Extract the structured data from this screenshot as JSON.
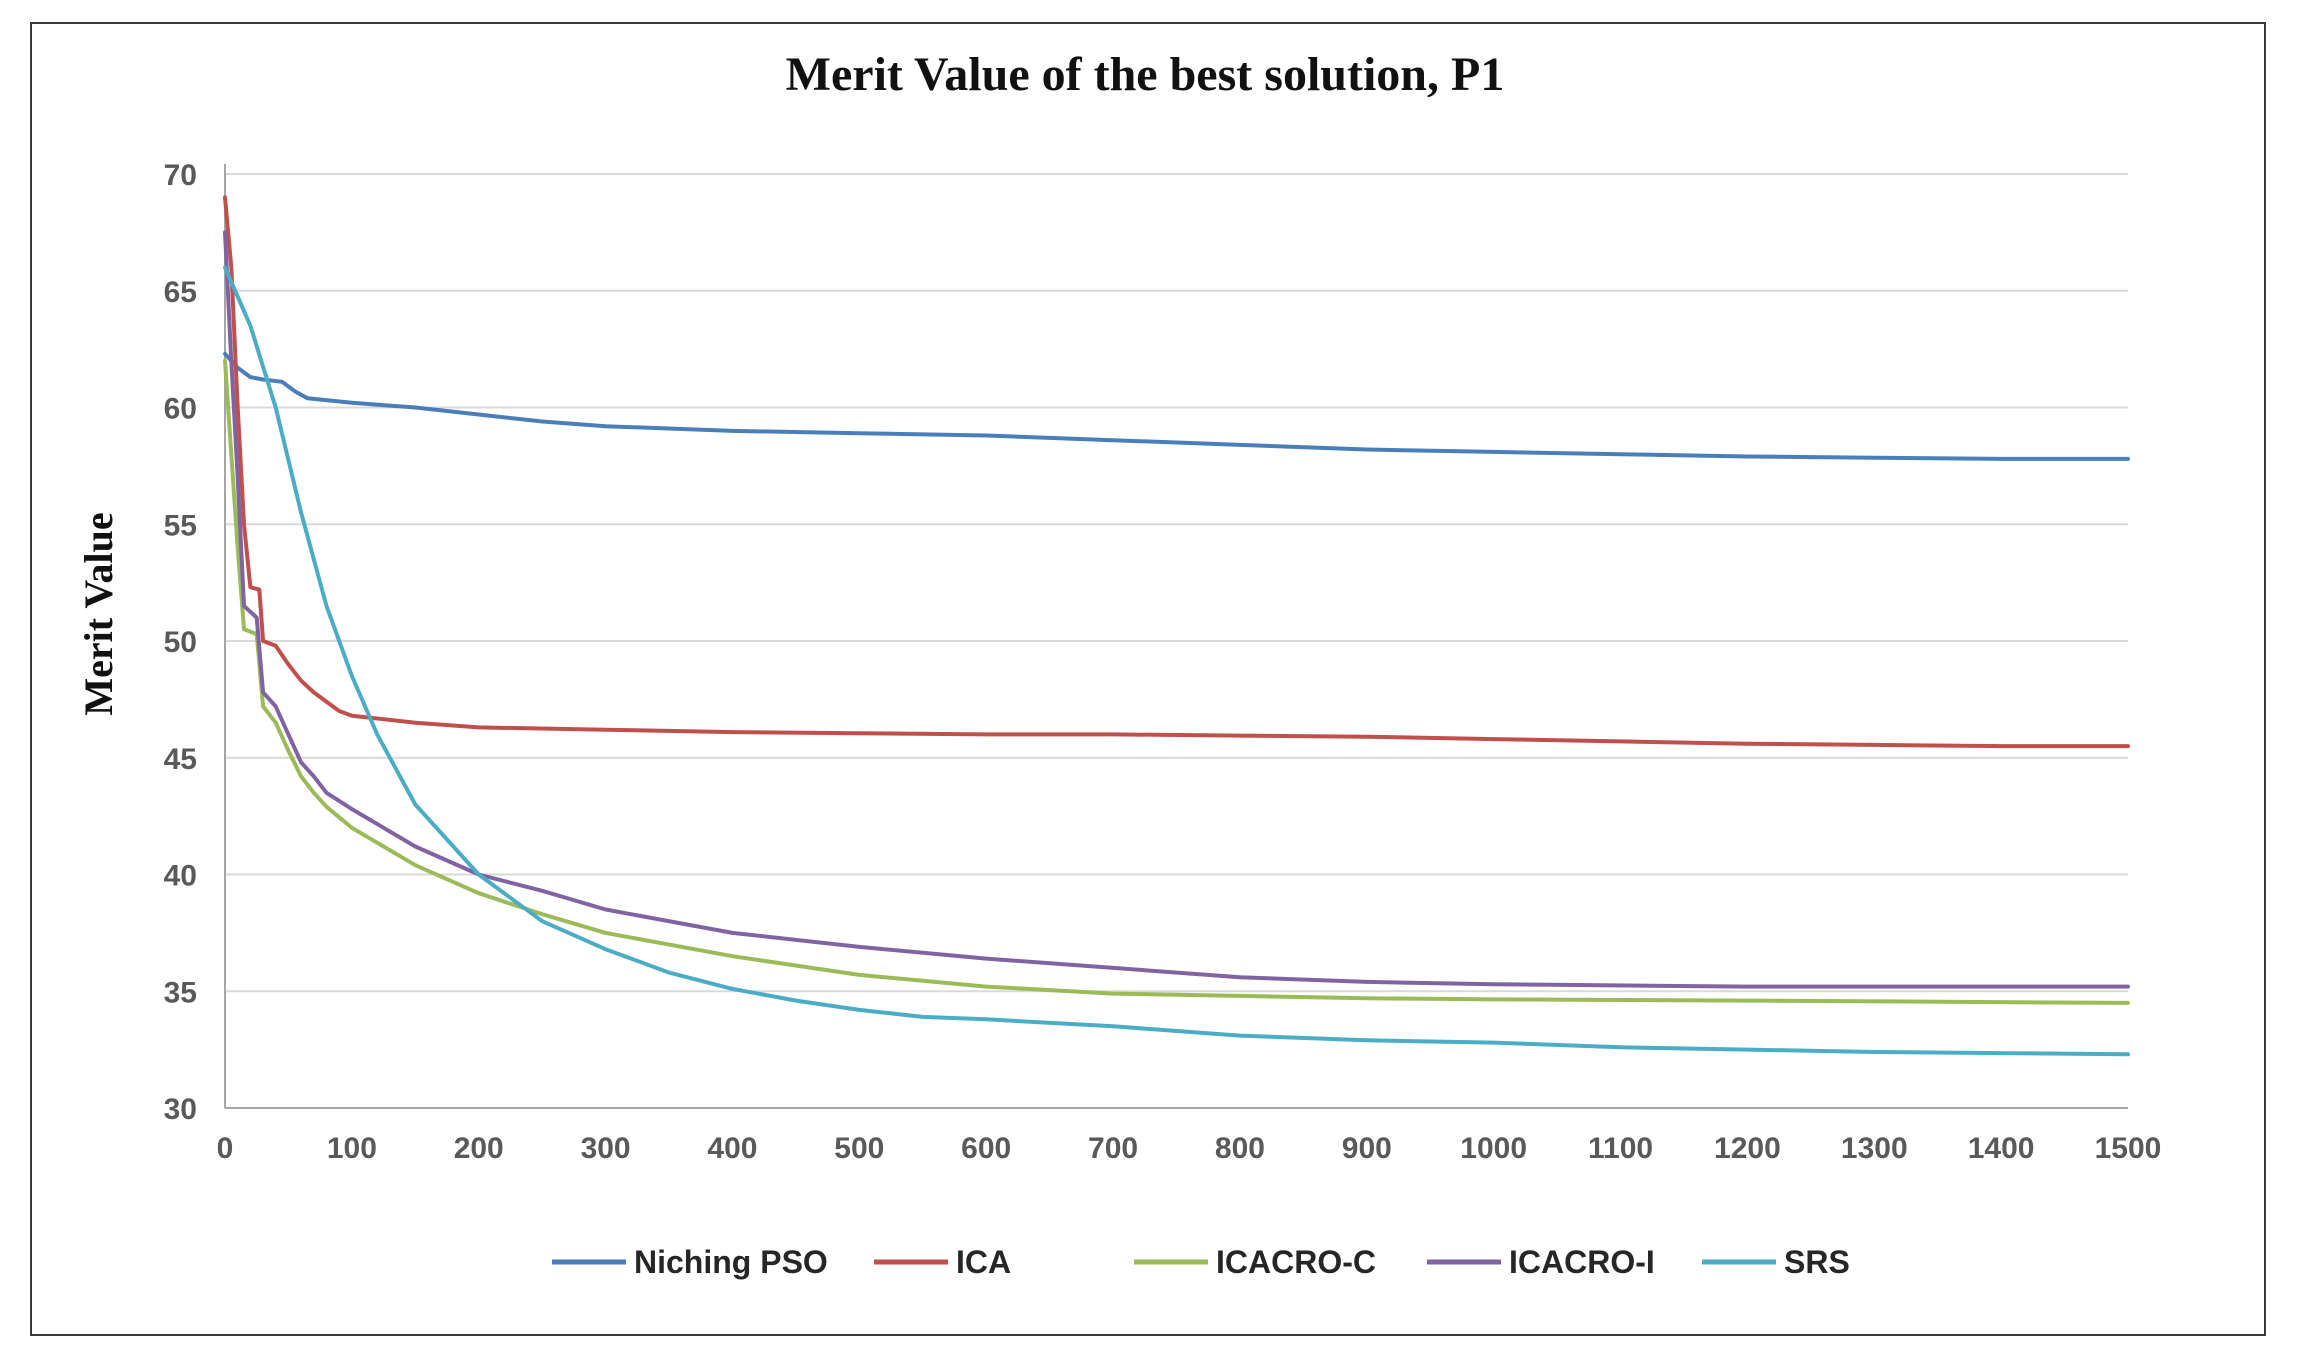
{
  "chart_data": {
    "type": "line",
    "title": "Merit Value of the best solution, P1",
    "xlabel": "",
    "ylabel": "Merit Value",
    "xlim": [
      0,
      1500
    ],
    "ylim": [
      30,
      70
    ],
    "xticks": [
      0,
      100,
      200,
      300,
      400,
      500,
      600,
      700,
      800,
      900,
      1000,
      1100,
      1200,
      1300,
      1400,
      1500
    ],
    "yticks": [
      30,
      35,
      40,
      45,
      50,
      55,
      60,
      65,
      70
    ],
    "grid": "horizontal",
    "legend_position": "bottom",
    "series": [
      {
        "name": "Niching PSO",
        "color": "#4a7ebb",
        "points": [
          [
            0,
            62.3
          ],
          [
            10,
            61.7
          ],
          [
            20,
            61.3
          ],
          [
            30,
            61.2
          ],
          [
            45,
            61.1
          ],
          [
            55,
            60.7
          ],
          [
            65,
            60.4
          ],
          [
            100,
            60.2
          ],
          [
            150,
            60.0
          ],
          [
            200,
            59.7
          ],
          [
            250,
            59.4
          ],
          [
            300,
            59.2
          ],
          [
            400,
            59.0
          ],
          [
            500,
            58.9
          ],
          [
            600,
            58.8
          ],
          [
            700,
            58.6
          ],
          [
            800,
            58.4
          ],
          [
            900,
            58.2
          ],
          [
            1000,
            58.1
          ],
          [
            1100,
            58.0
          ],
          [
            1200,
            57.9
          ],
          [
            1300,
            57.85
          ],
          [
            1400,
            57.8
          ],
          [
            1500,
            57.8
          ]
        ]
      },
      {
        "name": "ICA",
        "color": "#c0504d",
        "points": [
          [
            0,
            69.0
          ],
          [
            5,
            66.0
          ],
          [
            10,
            60.0
          ],
          [
            15,
            55.0
          ],
          [
            20,
            52.3
          ],
          [
            27,
            52.2
          ],
          [
            30,
            50.0
          ],
          [
            40,
            49.8
          ],
          [
            50,
            49.0
          ],
          [
            60,
            48.3
          ],
          [
            70,
            47.8
          ],
          [
            80,
            47.4
          ],
          [
            90,
            47.0
          ],
          [
            100,
            46.8
          ],
          [
            150,
            46.5
          ],
          [
            200,
            46.3
          ],
          [
            300,
            46.2
          ],
          [
            400,
            46.1
          ],
          [
            500,
            46.05
          ],
          [
            600,
            46.0
          ],
          [
            700,
            46.0
          ],
          [
            800,
            45.95
          ],
          [
            900,
            45.9
          ],
          [
            1000,
            45.8
          ],
          [
            1100,
            45.7
          ],
          [
            1200,
            45.6
          ],
          [
            1300,
            45.55
          ],
          [
            1400,
            45.5
          ],
          [
            1500,
            45.5
          ]
        ]
      },
      {
        "name": "ICACRO-C",
        "color": "#9bbb59",
        "points": [
          [
            0,
            62.0
          ],
          [
            5,
            58.0
          ],
          [
            10,
            54.0
          ],
          [
            15,
            50.5
          ],
          [
            25,
            50.3
          ],
          [
            30,
            47.2
          ],
          [
            40,
            46.5
          ],
          [
            50,
            45.3
          ],
          [
            60,
            44.2
          ],
          [
            70,
            43.5
          ],
          [
            80,
            42.9
          ],
          [
            100,
            42.0
          ],
          [
            150,
            40.4
          ],
          [
            200,
            39.2
          ],
          [
            250,
            38.3
          ],
          [
            300,
            37.5
          ],
          [
            400,
            36.5
          ],
          [
            500,
            35.7
          ],
          [
            600,
            35.2
          ],
          [
            700,
            34.9
          ],
          [
            800,
            34.8
          ],
          [
            900,
            34.7
          ],
          [
            1000,
            34.65
          ],
          [
            1200,
            34.6
          ],
          [
            1500,
            34.5
          ]
        ]
      },
      {
        "name": "ICACRO-I",
        "color": "#8064a2",
        "points": [
          [
            0,
            67.5
          ],
          [
            5,
            62.0
          ],
          [
            10,
            57.0
          ],
          [
            15,
            51.5
          ],
          [
            25,
            51.0
          ],
          [
            30,
            47.8
          ],
          [
            40,
            47.2
          ],
          [
            50,
            46.0
          ],
          [
            60,
            44.8
          ],
          [
            70,
            44.2
          ],
          [
            80,
            43.5
          ],
          [
            100,
            42.8
          ],
          [
            150,
            41.2
          ],
          [
            200,
            40.0
          ],
          [
            250,
            39.3
          ],
          [
            300,
            38.5
          ],
          [
            400,
            37.5
          ],
          [
            500,
            36.9
          ],
          [
            600,
            36.4
          ],
          [
            700,
            36.0
          ],
          [
            800,
            35.6
          ],
          [
            900,
            35.4
          ],
          [
            1000,
            35.3
          ],
          [
            1200,
            35.2
          ],
          [
            1500,
            35.2
          ]
        ]
      },
      {
        "name": "SRS",
        "color": "#4bacc6",
        "points": [
          [
            0,
            66.0
          ],
          [
            20,
            63.5
          ],
          [
            40,
            60.0
          ],
          [
            60,
            55.5
          ],
          [
            80,
            51.5
          ],
          [
            100,
            48.5
          ],
          [
            120,
            46.0
          ],
          [
            150,
            43.0
          ],
          [
            175,
            41.5
          ],
          [
            200,
            40.0
          ],
          [
            250,
            38.0
          ],
          [
            300,
            36.8
          ],
          [
            350,
            35.8
          ],
          [
            400,
            35.1
          ],
          [
            450,
            34.6
          ],
          [
            500,
            34.2
          ],
          [
            550,
            33.9
          ],
          [
            600,
            33.8
          ],
          [
            700,
            33.5
          ],
          [
            800,
            33.1
          ],
          [
            900,
            32.9
          ],
          [
            1000,
            32.8
          ],
          [
            1100,
            32.6
          ],
          [
            1200,
            32.5
          ],
          [
            1300,
            32.4
          ],
          [
            1400,
            32.35
          ],
          [
            1500,
            32.3
          ]
        ]
      }
    ]
  }
}
